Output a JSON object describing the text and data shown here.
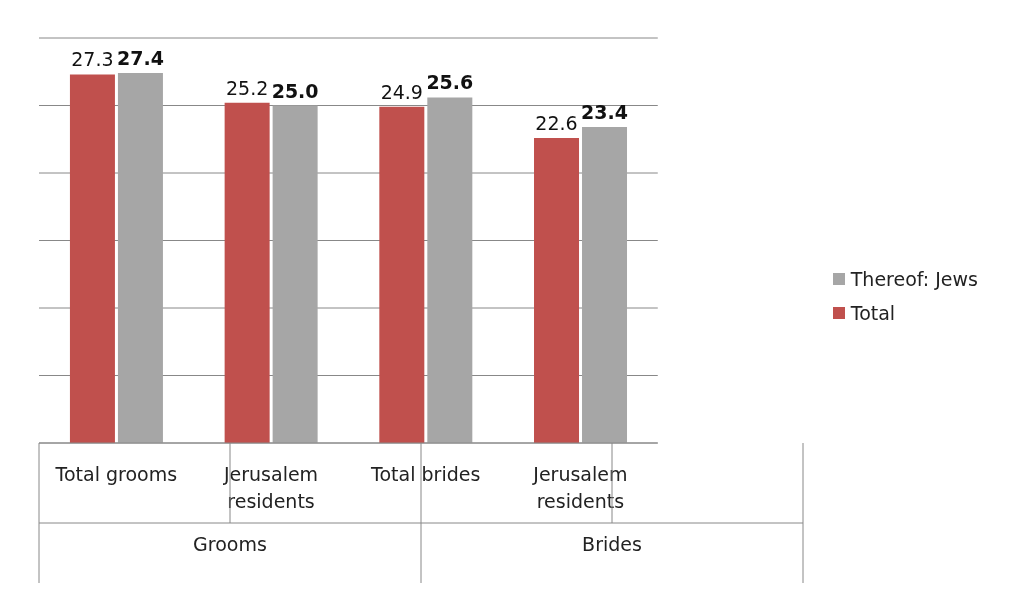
{
  "chart_data": {
    "type": "bar",
    "categories": [
      "Total grooms",
      "Jerusalem residents",
      "Total brides",
      "Jerusalem residents"
    ],
    "series": [
      {
        "name": "Total",
        "color": "#c0504d",
        "values": [
          27.3,
          25.2,
          24.9,
          22.6
        ],
        "value_labels": [
          "27.3",
          "25.2",
          "24.9",
          "22.6"
        ]
      },
      {
        "name": "Thereof: Jews",
        "color": "#a6a6a6",
        "values": [
          27.4,
          25.0,
          25.6,
          23.4
        ],
        "value_labels": [
          "27.4",
          "25.0",
          "25.6",
          "23.4"
        ]
      }
    ],
    "ylim": [
      0,
      30
    ],
    "tick_labels": "x",
    "grid": "y",
    "legend": "right",
    "annotations": [
      "Grooms",
      "Brides"
    ]
  }
}
